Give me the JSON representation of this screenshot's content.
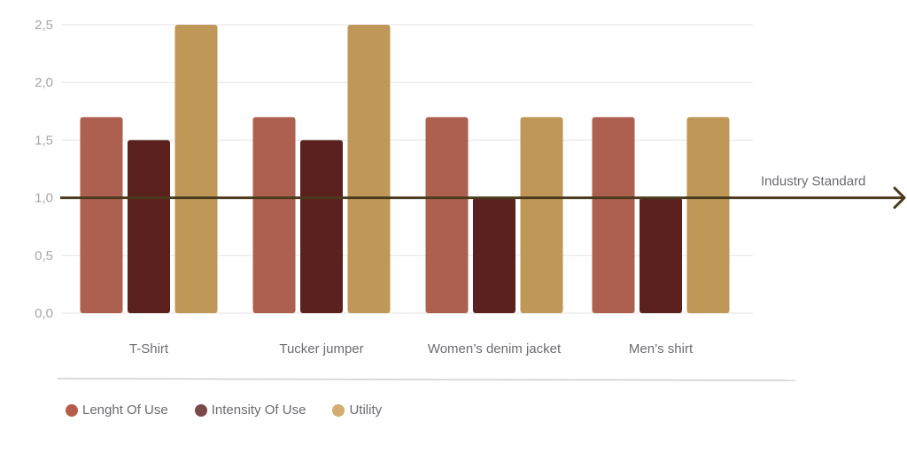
{
  "chart_data": {
    "type": "bar",
    "categories": [
      "T-Shirt",
      "Tucker jumper",
      "Women’s denim jacket",
      "Men’s shirt"
    ],
    "series": [
      {
        "name": "Lenght Of Use",
        "values": [
          1.7,
          1.7,
          1.7,
          1.7
        ],
        "color": "#ad604f"
      },
      {
        "name": "Intensity Of Use",
        "values": [
          1.5,
          1.5,
          1.0,
          1.0
        ],
        "color": "#5a211e"
      },
      {
        "name": "Utility",
        "values": [
          2.5,
          2.5,
          1.7,
          1.7
        ],
        "color": "#bf9757"
      }
    ],
    "legend_colors": [
      "#b55b4a",
      "#7a4a48",
      "#d4ad72"
    ],
    "y_ticks": [
      "0,0",
      "0,5",
      "1,0",
      "1,5",
      "2,0",
      "2,5"
    ],
    "ylim": [
      0,
      2.5
    ],
    "grid": true,
    "legend_position": "bottom-left",
    "reference_line": {
      "value": 1.0,
      "label": "Industry Standard",
      "color": "#4a3a1e"
    }
  }
}
